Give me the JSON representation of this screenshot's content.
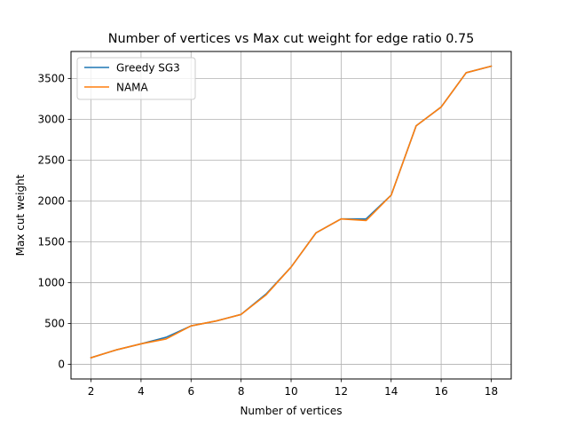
{
  "chart_data": {
    "type": "line",
    "title": "Number of vertices vs Max cut weight for edge ratio 0.75",
    "xlabel": "Number of vertices",
    "ylabel": "Max cut weight",
    "xlim": [
      1.2,
      18.8
    ],
    "ylim": [
      -180,
      3830
    ],
    "xticks": [
      2,
      4,
      6,
      8,
      10,
      12,
      14,
      16,
      18
    ],
    "yticks": [
      0,
      500,
      1000,
      1500,
      2000,
      2500,
      3000,
      3500
    ],
    "grid": true,
    "legend_position": "top-left",
    "x": [
      2,
      3,
      4,
      5,
      6,
      7,
      8,
      9,
      10,
      11,
      12,
      13,
      14,
      15,
      16,
      17,
      18
    ],
    "series": [
      {
        "name": "Greedy SG3",
        "color": "#1f77b4",
        "values": [
          80,
          175,
          250,
          330,
          470,
          530,
          610,
          860,
          1190,
          1610,
          1780,
          1780,
          2070,
          2920,
          3150,
          3570,
          3650
        ]
      },
      {
        "name": "NAMA",
        "color": "#ff7f0e",
        "values": [
          80,
          175,
          250,
          310,
          470,
          530,
          610,
          850,
          1190,
          1610,
          1780,
          1760,
          2070,
          2920,
          3150,
          3570,
          3650
        ]
      }
    ]
  }
}
